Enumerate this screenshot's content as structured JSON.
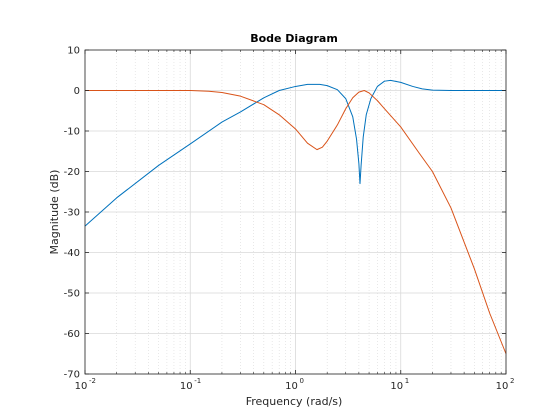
{
  "chart_data": {
    "type": "line",
    "title": "Bode Diagram",
    "xlabel": "Frequency  (rad/s)",
    "ylabel": "Magnitude (dB)",
    "xscale": "log",
    "xlim": [
      0.01,
      100
    ],
    "ylim": [
      -70,
      10
    ],
    "grid": true,
    "minor_grid": true,
    "x_tick_labels": [
      {
        "value": 0.01,
        "base": "10",
        "exp": "-2"
      },
      {
        "value": 0.1,
        "base": "10",
        "exp": "-1"
      },
      {
        "value": 1,
        "base": "10",
        "exp": "0"
      },
      {
        "value": 10,
        "base": "10",
        "exp": "1"
      },
      {
        "value": 100,
        "base": "10",
        "exp": "2"
      }
    ],
    "y_ticks": [
      10,
      0,
      -10,
      -20,
      -30,
      -40,
      -50,
      -60,
      -70
    ],
    "colors": {
      "series_1": "#0072bd",
      "series_2": "#d95319",
      "grid": "#d9d9d9",
      "axes": "#262626"
    },
    "series": [
      {
        "color": "#0072bd",
        "points": [
          [
            0.01,
            -33.5
          ],
          [
            0.02,
            -26.5
          ],
          [
            0.05,
            -18.5
          ],
          [
            0.1,
            -13.2
          ],
          [
            0.2,
            -7.8
          ],
          [
            0.3,
            -5.3
          ],
          [
            0.5,
            -1.8
          ],
          [
            0.7,
            0.0
          ],
          [
            1.0,
            1.0
          ],
          [
            1.3,
            1.5
          ],
          [
            1.7,
            1.5
          ],
          [
            2.0,
            1.2
          ],
          [
            2.5,
            0.2
          ],
          [
            3.0,
            -2.0
          ],
          [
            3.5,
            -6.5
          ],
          [
            3.8,
            -12.0
          ],
          [
            4.0,
            -18.0
          ],
          [
            4.1,
            -23.0
          ],
          [
            4.2,
            -18.5
          ],
          [
            4.4,
            -11.5
          ],
          [
            4.7,
            -6.0
          ],
          [
            5.2,
            -2.0
          ],
          [
            6.0,
            1.0
          ],
          [
            7.0,
            2.3
          ],
          [
            8.0,
            2.5
          ],
          [
            10.0,
            2.0
          ],
          [
            13.0,
            1.0
          ],
          [
            16.0,
            0.4
          ],
          [
            20.0,
            0.1
          ],
          [
            30.0,
            0.0
          ],
          [
            50.0,
            0.0
          ],
          [
            100.0,
            0.0
          ]
        ]
      },
      {
        "color": "#d95319",
        "points": [
          [
            0.01,
            0.0
          ],
          [
            0.05,
            0.0
          ],
          [
            0.1,
            0.0
          ],
          [
            0.15,
            -0.2
          ],
          [
            0.2,
            -0.5
          ],
          [
            0.3,
            -1.4
          ],
          [
            0.5,
            -3.5
          ],
          [
            0.7,
            -6.0
          ],
          [
            1.0,
            -9.5
          ],
          [
            1.3,
            -13.0
          ],
          [
            1.6,
            -14.6
          ],
          [
            1.8,
            -14.0
          ],
          [
            2.0,
            -12.5
          ],
          [
            2.5,
            -8.5
          ],
          [
            3.0,
            -4.5
          ],
          [
            3.5,
            -1.8
          ],
          [
            4.0,
            -0.4
          ],
          [
            4.5,
            0.0
          ],
          [
            5.0,
            -0.6
          ],
          [
            6.0,
            -2.5
          ],
          [
            7.0,
            -4.5
          ],
          [
            10.0,
            -9.0
          ],
          [
            15.0,
            -15.5
          ],
          [
            20.0,
            -20.0
          ],
          [
            30.0,
            -29.0
          ],
          [
            50.0,
            -44.0
          ],
          [
            70.0,
            -55.0
          ],
          [
            100.0,
            -65.0
          ]
        ]
      }
    ]
  }
}
